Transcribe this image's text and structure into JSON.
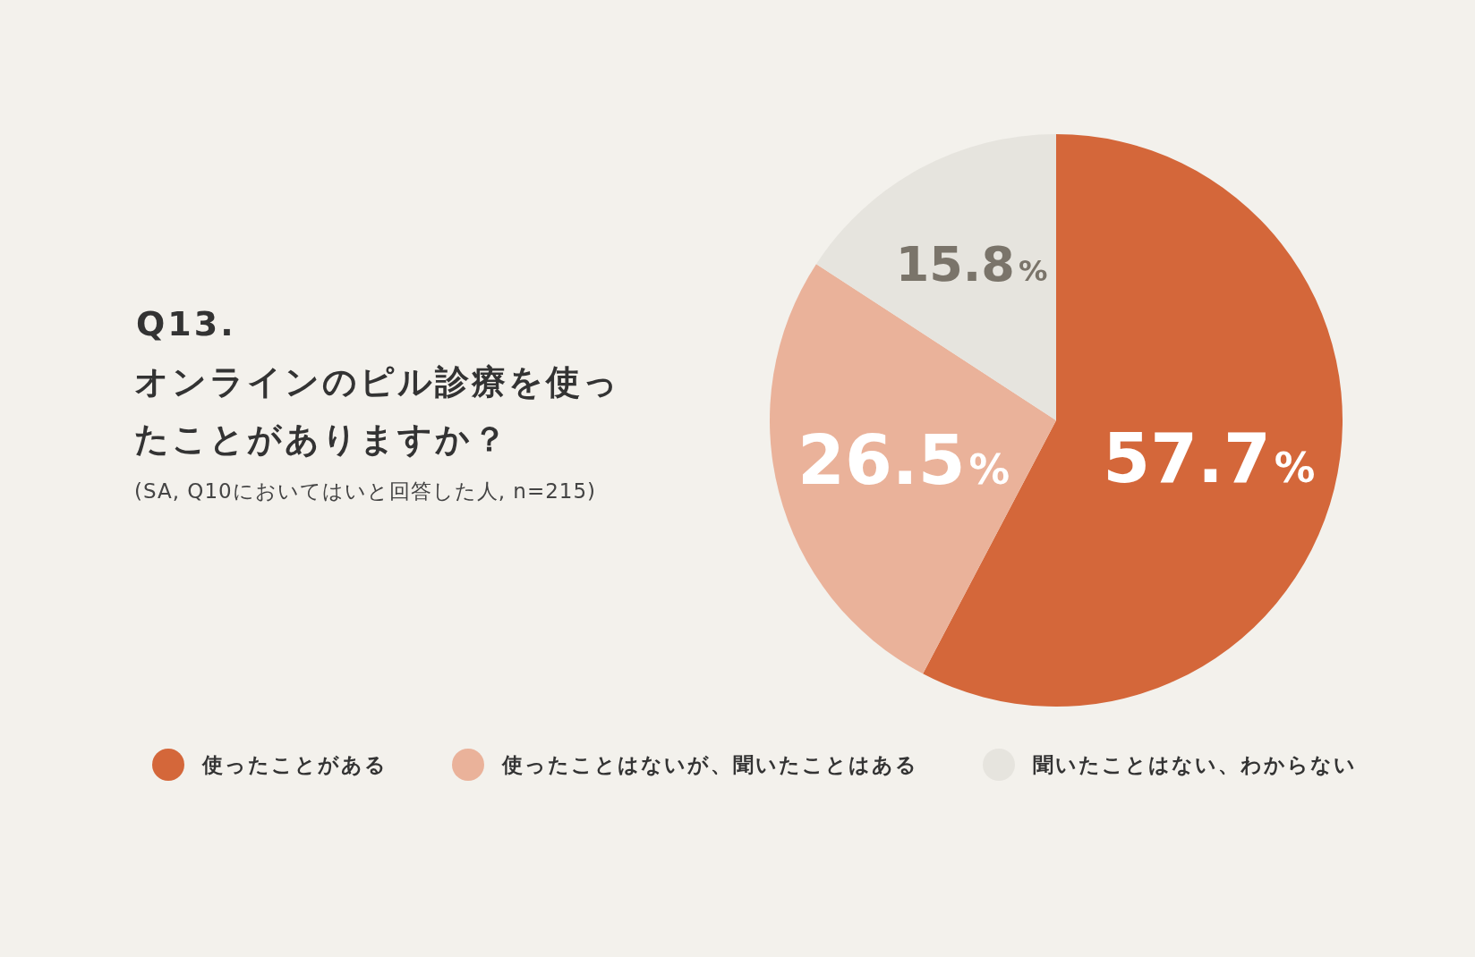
{
  "chart_data": {
    "type": "pie",
    "title": "Q13.",
    "subtitle": "オンラインのピル診療を使ったことがありますか？",
    "annotations": [
      "(SA, Q10においてはいと回答した人, n=215)"
    ],
    "categories": [
      "使ったことがある",
      "使ったことはないが、聞いたことはある",
      "聞いたことはない、わからない"
    ],
    "values": [
      57.7,
      26.5,
      15.8
    ],
    "colors": [
      "#d4673a",
      "#eab29a",
      "#e6e4de"
    ],
    "value_labels": [
      "57.7%",
      "26.5%",
      "15.8%"
    ],
    "legend": "bottom"
  }
}
